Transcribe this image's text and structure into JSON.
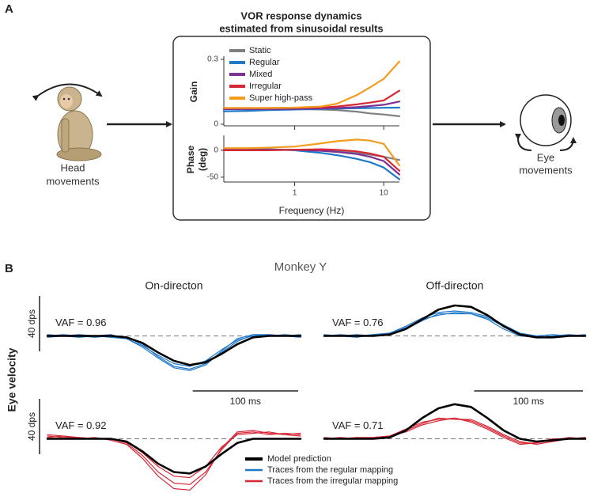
{
  "panel_a": {
    "label": "A",
    "title": [
      "VOR response dynamics",
      "estimated from sinusoidal results"
    ],
    "input_label": [
      "Head",
      "movements"
    ],
    "output_label": [
      "Eye",
      "movements"
    ]
  },
  "panel_b": {
    "label": "B",
    "title": "Monkey Y",
    "y_axis_label": "Eye velocity",
    "legend": [
      {
        "label": "Model prediction",
        "color": "#000000"
      },
      {
        "label": "Traces from the regular mapping",
        "color": "#1f78c8"
      },
      {
        "label": "Traces from the irregular mapping",
        "color": "#d62735"
      }
    ]
  },
  "chart_data": [
    {
      "type": "line",
      "ylabel": "Gain",
      "xscale": "log",
      "x": [
        0.16,
        0.3,
        0.5,
        1,
        2,
        3,
        5,
        7,
        10,
        15
      ],
      "xlim": [
        0.16,
        15
      ],
      "xticks": [
        1,
        10
      ],
      "ylim": [
        0,
        0.3
      ],
      "yticks": [
        0,
        0.3
      ],
      "legend": "upper left",
      "series": [
        {
          "name": "Static",
          "color": "#808080",
          "values": [
            0.07,
            0.07,
            0.07,
            0.07,
            0.068,
            0.065,
            0.058,
            0.05,
            0.045,
            0.037
          ]
        },
        {
          "name": "Regular",
          "color": "#1f78c8",
          "values": [
            0.06,
            0.062,
            0.065,
            0.068,
            0.071,
            0.072,
            0.074,
            0.075,
            0.076,
            0.077
          ]
        },
        {
          "name": "Mixed",
          "color": "#7b3294",
          "values": [
            0.07,
            0.07,
            0.07,
            0.071,
            0.073,
            0.075,
            0.079,
            0.084,
            0.09,
            0.105
          ]
        },
        {
          "name": "Irregular",
          "color": "#d62735",
          "values": [
            0.075,
            0.075,
            0.075,
            0.076,
            0.078,
            0.082,
            0.092,
            0.1,
            0.11,
            0.155
          ]
        },
        {
          "name": "Super high-pass",
          "color": "#f39c1f",
          "values": [
            0.075,
            0.075,
            0.075,
            0.077,
            0.082,
            0.095,
            0.135,
            0.17,
            0.21,
            0.29
          ]
        }
      ]
    },
    {
      "type": "line",
      "ylabel": [
        "Phase",
        "(deg)"
      ],
      "xlabel": "Frequency (Hz)",
      "xscale": "log",
      "x": [
        0.16,
        0.3,
        0.5,
        1,
        2,
        3,
        5,
        7,
        10,
        15
      ],
      "xlim": [
        0.16,
        15
      ],
      "xticks": [
        1,
        10
      ],
      "ylim": [
        -56,
        22
      ],
      "yticks": [
        -50,
        0
      ],
      "series": [
        {
          "color": "#808080",
          "values": [
            1,
            1,
            1,
            1,
            0,
            -2,
            -5,
            -8,
            -12,
            -18
          ]
        },
        {
          "color": "#1f78c8",
          "values": [
            3,
            3,
            2,
            0,
            -5,
            -9,
            -16,
            -22,
            -32,
            -54
          ]
        },
        {
          "color": "#7b3294",
          "values": [
            1,
            1,
            1,
            1,
            -1,
            -3,
            -7,
            -12,
            -20,
            -45
          ]
        },
        {
          "color": "#d62735",
          "values": [
            0,
            0,
            0,
            1,
            2,
            1,
            -2,
            -6,
            -12,
            -38
          ]
        },
        {
          "color": "#f39c1f",
          "values": [
            4,
            4,
            5,
            7,
            13,
            17,
            20,
            18,
            12,
            -28
          ]
        }
      ]
    },
    {
      "type": "line",
      "title": "On-directon",
      "annotation": "VAF = 0.96",
      "x": [
        0,
        15,
        30,
        45,
        60,
        75,
        90,
        105,
        120,
        135,
        150,
        165,
        180,
        195,
        210,
        225,
        240
      ],
      "xlim": [
        0,
        240
      ],
      "ylim": [
        -38,
        30
      ],
      "scalebar_y": {
        "value": 40,
        "label": "40 dps"
      },
      "scalebar_x": {
        "value": 100,
        "label": "100 ms"
      },
      "series": [
        {
          "color": "#1f78c8",
          "values": [
            1,
            0,
            -1,
            0,
            1,
            -2,
            -7,
            -14,
            -20,
            -22,
            -18,
            -10,
            -3,
            0,
            1,
            0,
            1
          ]
        },
        {
          "color": "#1f78c8",
          "values": [
            0,
            1,
            0,
            -1,
            0,
            -1,
            -6,
            -15,
            -22,
            -24,
            -20,
            -12,
            -4,
            1,
            0,
            1,
            0
          ]
        },
        {
          "color": "#1f78c8",
          "values": [
            -1,
            0,
            1,
            0,
            -1,
            -2,
            -8,
            -16,
            -23,
            -25,
            -21,
            -11,
            -2,
            1,
            1,
            0,
            -1
          ]
        },
        {
          "color": "#000000",
          "values": [
            0,
            0,
            0,
            0,
            0,
            -1,
            -5,
            -12,
            -18,
            -21,
            -19,
            -13,
            -6,
            -1,
            0,
            0,
            0
          ]
        }
      ]
    },
    {
      "type": "line",
      "title": "Off-directon",
      "annotation": "VAF = 0.76",
      "x": [
        0,
        15,
        30,
        45,
        60,
        75,
        90,
        105,
        120,
        135,
        150,
        165,
        180,
        195,
        210,
        225,
        240
      ],
      "xlim": [
        0,
        240
      ],
      "ylim": [
        -38,
        30
      ],
      "scalebar_x": {
        "value": 100,
        "label": "100 ms"
      },
      "series": [
        {
          "color": "#1f78c8",
          "values": [
            0,
            1,
            0,
            1,
            2,
            6,
            12,
            15,
            17,
            16,
            13,
            7,
            1,
            0,
            1,
            0,
            1
          ]
        },
        {
          "color": "#1f78c8",
          "values": [
            1,
            0,
            1,
            0,
            1,
            5,
            11,
            16,
            16,
            16,
            12,
            5,
            0,
            -1,
            0,
            1,
            0
          ]
        },
        {
          "color": "#1f78c8",
          "values": [
            0,
            0,
            -1,
            1,
            2,
            7,
            13,
            17,
            18,
            17,
            14,
            8,
            2,
            0,
            -1,
            0,
            0
          ]
        },
        {
          "color": "#000000",
          "values": [
            0,
            0,
            0,
            0,
            1,
            5,
            12,
            19,
            22,
            21,
            15,
            7,
            1,
            -1,
            -1,
            0,
            0
          ]
        }
      ]
    },
    {
      "type": "line",
      "annotation": "VAF = 0.92",
      "x": [
        0,
        15,
        30,
        45,
        60,
        75,
        90,
        105,
        120,
        135,
        150,
        165,
        180,
        195,
        210,
        225,
        240
      ],
      "xlim": [
        0,
        240
      ],
      "ylim": [
        -38,
        30
      ],
      "scalebar_y": {
        "value": 40,
        "label": "40 dps"
      },
      "series": [
        {
          "color": "#d62735",
          "values": [
            3,
            2,
            1,
            0,
            0,
            -3,
            -12,
            -24,
            -32,
            -33,
            -24,
            -8,
            4,
            5,
            3,
            4,
            3
          ]
        },
        {
          "color": "#d62735",
          "values": [
            1,
            2,
            0,
            1,
            -1,
            -4,
            -14,
            -27,
            -36,
            -37,
            -26,
            -7,
            5,
            6,
            4,
            3,
            4
          ]
        },
        {
          "color": "#d62735",
          "values": [
            2,
            1,
            1,
            0,
            0,
            -2,
            -10,
            -20,
            -27,
            -28,
            -20,
            -6,
            3,
            4,
            5,
            3,
            2
          ]
        },
        {
          "color": "#000000",
          "values": [
            0,
            0,
            0,
            0,
            0,
            -2,
            -9,
            -18,
            -24,
            -25,
            -20,
            -11,
            -3,
            0,
            0,
            0,
            0
          ]
        }
      ]
    },
    {
      "type": "line",
      "annotation": "VAF = 0.71",
      "x": [
        0,
        15,
        30,
        45,
        60,
        75,
        90,
        105,
        120,
        135,
        150,
        165,
        180,
        195,
        210,
        225,
        240
      ],
      "xlim": [
        0,
        240
      ],
      "ylim": [
        -38,
        30
      ],
      "series": [
        {
          "color": "#d62735",
          "values": [
            0,
            1,
            0,
            1,
            2,
            7,
            12,
            14,
            15,
            13,
            8,
            2,
            -3,
            -3,
            -1,
            1,
            0
          ]
        },
        {
          "color": "#d62735",
          "values": [
            1,
            0,
            1,
            0,
            1,
            6,
            11,
            15,
            14,
            14,
            9,
            3,
            -2,
            -4,
            -2,
            0,
            1
          ]
        },
        {
          "color": "#d62735",
          "values": [
            0,
            0,
            1,
            1,
            2,
            5,
            10,
            13,
            15,
            12,
            7,
            1,
            -4,
            -3,
            0,
            0,
            1
          ]
        },
        {
          "color": "#000000",
          "values": [
            0,
            0,
            0,
            0,
            1,
            6,
            15,
            22,
            25,
            23,
            15,
            6,
            0,
            -2,
            -1,
            0,
            0
          ]
        }
      ]
    }
  ]
}
